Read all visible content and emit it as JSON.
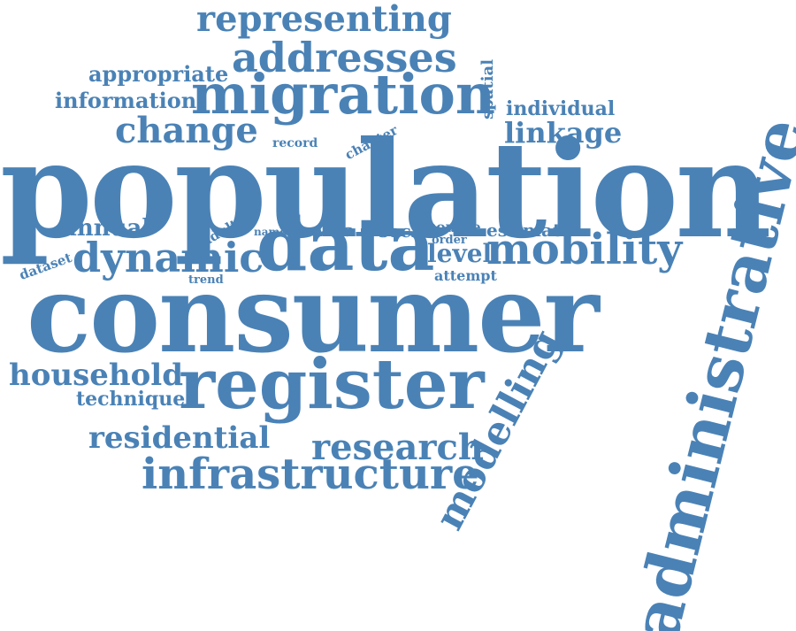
{
  "color": "#4a82b6",
  "words": {
    "representing": "representing",
    "addresses": "addresses",
    "appropriate": "appropriate",
    "migration": "migration",
    "information": "information",
    "spatial": "spatial",
    "individual": "individual",
    "change": "change",
    "record": "record",
    "chapter": "chapter",
    "linkage": "linkage",
    "population": "population",
    "administrative": "administrative",
    "annual": "annual",
    "adult": "adult",
    "name": "name",
    "area": "area",
    "social": "social",
    "source": "source",
    "estimate": "estimate",
    "order": "order",
    "dataset": "dataset",
    "dynamic": "dynamic",
    "data": "data",
    "level": "level",
    "mobility": "mobility",
    "trend": "trend",
    "attempt": "attempt",
    "consumer": "consumer",
    "household": "household",
    "register": "register",
    "technique": "technique",
    "modelling": "modelling",
    "residential": "residential",
    "research": "research",
    "infrastructure": "infrastructure"
  }
}
